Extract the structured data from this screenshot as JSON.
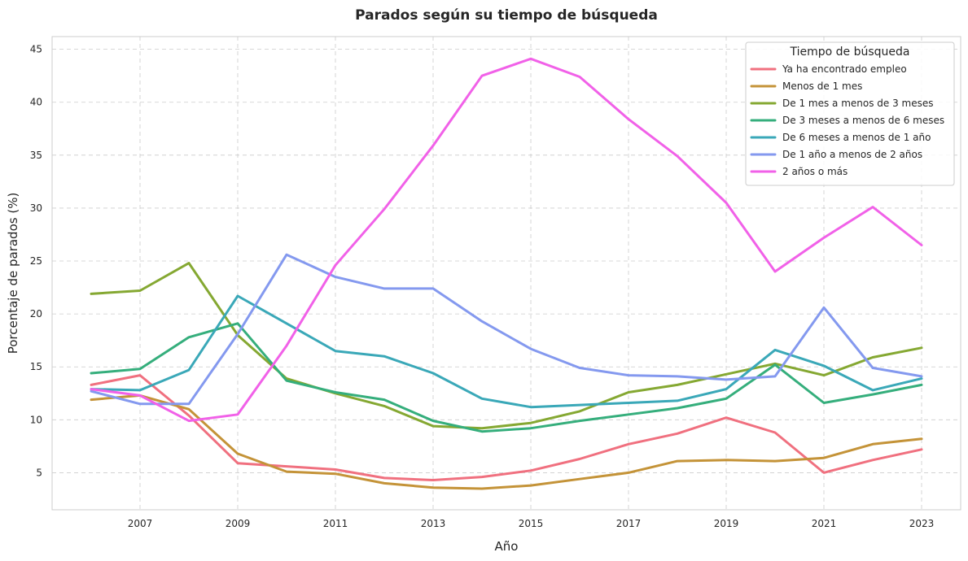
{
  "chart_data": {
    "type": "line",
    "title": "Parados según su tiempo de búsqueda",
    "xlabel": "Año",
    "ylabel": "Porcentaje de parados (%)",
    "x": [
      2006,
      2007,
      2008,
      2009,
      2010,
      2011,
      2012,
      2013,
      2014,
      2015,
      2016,
      2017,
      2018,
      2019,
      2020,
      2021,
      2022,
      2023
    ],
    "xticks": [
      "2007",
      "2009",
      "2011",
      "2013",
      "2015",
      "2017",
      "2019",
      "2021",
      "2023"
    ],
    "xlim": [
      2005.2,
      2023.8
    ],
    "ylim": [
      1.5,
      46.2
    ],
    "yticks": [
      "5",
      "10",
      "15",
      "20",
      "25",
      "30",
      "35",
      "40",
      "45"
    ],
    "grid": true,
    "legend_title": "Tiempo de búsqueda",
    "legend_position": "top-right",
    "series": [
      {
        "name": "Ya ha encontrado empleo",
        "color": "#f0707f",
        "values": [
          13.3,
          14.2,
          10.4,
          5.9,
          5.6,
          5.3,
          4.5,
          4.3,
          4.6,
          5.2,
          6.3,
          7.7,
          8.7,
          10.2,
          8.8,
          5.0,
          6.2,
          7.2
        ]
      },
      {
        "name": "Menos de 1 mes",
        "color": "#c49338",
        "values": [
          11.9,
          12.3,
          11.0,
          6.8,
          5.1,
          4.9,
          4.0,
          3.6,
          3.5,
          3.8,
          4.4,
          5.0,
          6.1,
          6.2,
          6.1,
          6.4,
          7.7,
          8.2
        ]
      },
      {
        "name": "De 1 mes a menos de 3 meses",
        "color": "#85a832",
        "values": [
          21.9,
          22.2,
          24.8,
          18.0,
          13.9,
          12.5,
          11.3,
          9.4,
          9.2,
          9.7,
          10.8,
          12.6,
          13.3,
          14.3,
          15.3,
          14.2,
          15.9,
          16.8
        ]
      },
      {
        "name": "De 3 meses a menos de 6 meses",
        "color": "#35ae7c",
        "values": [
          14.4,
          14.8,
          17.8,
          19.1,
          13.7,
          12.6,
          11.9,
          9.9,
          8.9,
          9.2,
          9.9,
          10.5,
          11.1,
          12.0,
          15.2,
          11.6,
          12.4,
          13.3
        ]
      },
      {
        "name": "De 6 meses a menos de 1 año",
        "color": "#3aa8b8",
        "values": [
          12.9,
          12.8,
          14.7,
          21.7,
          19.1,
          16.5,
          16.0,
          14.4,
          12.0,
          11.2,
          11.4,
          11.6,
          11.8,
          12.9,
          16.6,
          15.1,
          12.8,
          13.9
        ]
      },
      {
        "name": "De 1 año a menos de 2 años",
        "color": "#8499ef",
        "values": [
          12.7,
          11.5,
          11.5,
          18.1,
          25.6,
          23.5,
          22.4,
          22.4,
          19.3,
          16.7,
          14.9,
          14.2,
          14.1,
          13.8,
          14.1,
          20.6,
          14.9,
          14.1
        ]
      },
      {
        "name": "2 años o más",
        "color": "#f161e8",
        "values": [
          12.9,
          12.3,
          9.9,
          10.5,
          17.0,
          24.6,
          29.9,
          35.9,
          42.5,
          44.1,
          42.4,
          38.4,
          34.9,
          30.5,
          24.0,
          27.2,
          30.1,
          26.5
        ]
      }
    ]
  }
}
